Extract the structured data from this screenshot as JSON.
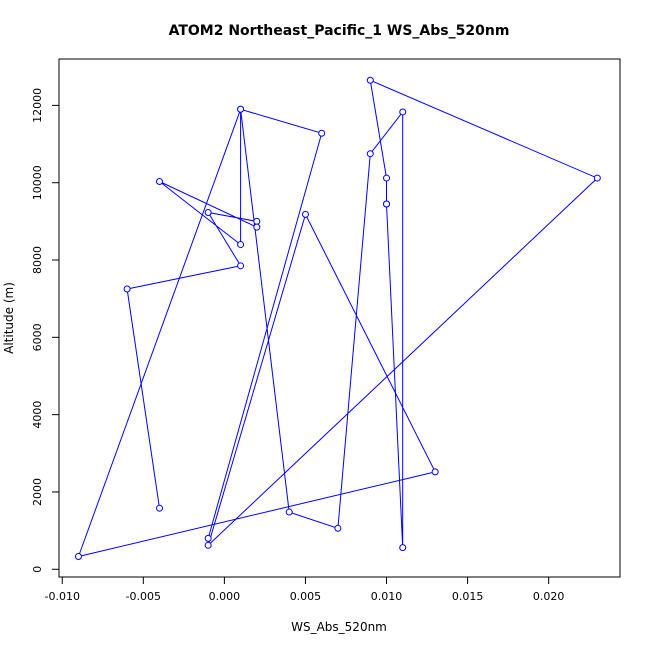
{
  "chart_data": {
    "type": "line",
    "title": "ATOM2 Northeast_Pacific_1 WS_Abs_520nm",
    "xlabel": "WS_Abs_520nm",
    "ylabel": "Altitude (m)",
    "xlim": [
      -0.0102,
      0.0244
    ],
    "ylim": [
      -200,
      13200
    ],
    "xticks": [
      -0.01,
      -0.005,
      0.0,
      0.005,
      0.01,
      0.015,
      0.02
    ],
    "xtick_labels": [
      "-0.010",
      "-0.005",
      "0.000",
      "0.005",
      "0.010",
      "0.015",
      "0.020"
    ],
    "yticks": [
      0,
      2000,
      4000,
      6000,
      8000,
      10000,
      12000
    ],
    "ytick_labels": [
      "0",
      "2000",
      "4000",
      "6000",
      "8000",
      "10000",
      "12000"
    ],
    "grid": false,
    "colors": {
      "series": "#0000ff"
    },
    "series": [
      {
        "x": [
          -0.004,
          -0.006,
          0.001,
          -0.001,
          0.002,
          0.002,
          -0.004,
          0.001,
          0.001,
          -0.009,
          0.013,
          0.005,
          -0.001,
          0.023,
          0.009,
          0.01,
          0.01,
          0.01,
          0.011,
          0.011,
          0.009,
          0.007,
          0.004,
          0.001,
          0.006,
          -0.001
        ],
        "y": [
          1580,
          7250,
          7850,
          9230,
          9000,
          8850,
          10030,
          8400,
          11900,
          330,
          2520,
          9180,
          620,
          10120,
          12650,
          10120,
          9450,
          9450,
          560,
          11830,
          10750,
          1060,
          1480,
          11900,
          11280,
          800
        ]
      }
    ]
  }
}
